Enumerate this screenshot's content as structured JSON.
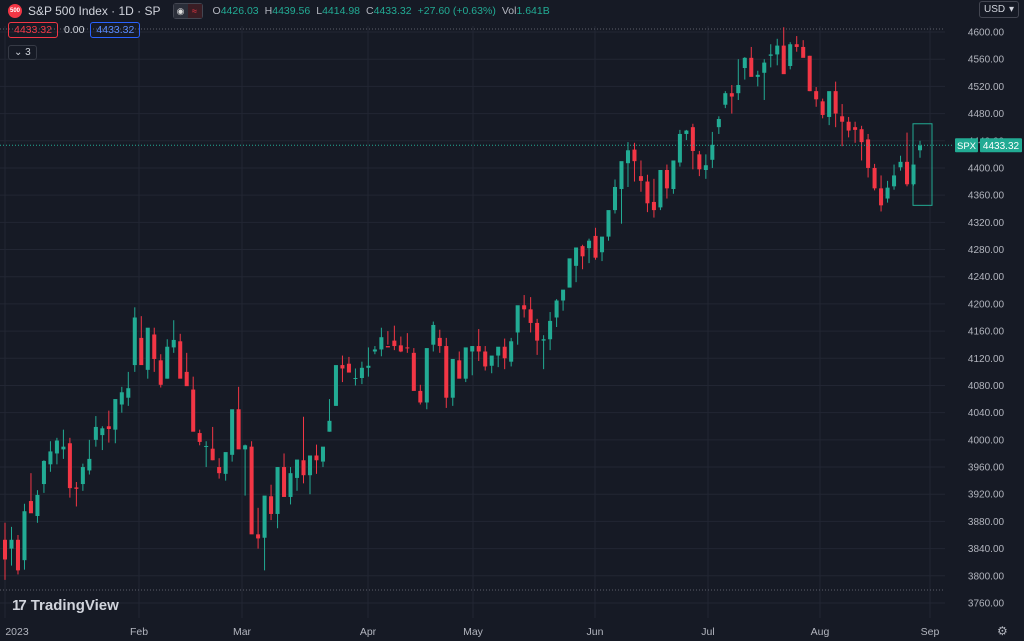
{
  "header": {
    "badge": "500",
    "title": "S&P 500 Index · 1D · SP",
    "ohlc": [
      {
        "k": "O",
        "v": "4426.03"
      },
      {
        "k": "H",
        "v": "4439.56"
      },
      {
        "k": "L",
        "v": "4414.98"
      },
      {
        "k": "C",
        "v": "4433.32"
      },
      {
        "k": "",
        "v": "+27.60 (+0.63%)"
      },
      {
        "k": "Vol",
        "v": "1.641B"
      }
    ],
    "sell": "4433.32",
    "spread": "0.00",
    "buy": "4433.32",
    "indicators_count": "3",
    "currency": "USD"
  },
  "brand": "TradingView",
  "colors": {
    "up": "#22ab94",
    "down": "#f23645",
    "bg": "#161a25",
    "grid": "#222633",
    "text": "#d1d4dc"
  },
  "chart_data": {
    "type": "candlestick",
    "symbol": "SPX",
    "last_price": 4433.32,
    "ylim": [
      3750,
      4610
    ],
    "y_ticks": [
      3760,
      3800,
      3840,
      3880,
      3920,
      3960,
      4000,
      4040,
      4080,
      4120,
      4160,
      4200,
      4240,
      4280,
      4320,
      4360,
      4400,
      4440,
      4480,
      4520,
      4560,
      4600
    ],
    "x_ticks": [
      {
        "date": "2023-01-03",
        "label": "2023"
      },
      {
        "date": "2023-02-01",
        "label": "Feb"
      },
      {
        "date": "2023-03-01",
        "label": "Mar"
      },
      {
        "date": "2023-04-03",
        "label": "Apr"
      },
      {
        "date": "2023-05-01",
        "label": "May"
      },
      {
        "date": "2023-06-01",
        "label": "Jun"
      },
      {
        "date": "2023-07-03",
        "label": "Jul"
      },
      {
        "date": "2023-08-01",
        "label": "Aug"
      },
      {
        "date": "2023-09-01",
        "label": "Sep"
      }
    ],
    "candles_ohlc": [
      [
        3853,
        3878,
        3794,
        3824
      ],
      [
        3840,
        3872,
        3815,
        3853
      ],
      [
        3853,
        3860,
        3802,
        3808
      ],
      [
        3823,
        3906,
        3809,
        3895
      ],
      [
        3910,
        3951,
        3903,
        3892
      ],
      [
        3888,
        3926,
        3878,
        3919
      ],
      [
        3935,
        3970,
        3922,
        3969
      ],
      [
        3964,
        3998,
        3953,
        3983
      ],
      [
        3980,
        4003,
        3964,
        3999
      ],
      [
        3986,
        4015,
        3972,
        3990
      ],
      [
        3995,
        4003,
        3915,
        3929
      ],
      [
        3930,
        3938,
        3902,
        3928
      ],
      [
        3935,
        3965,
        3925,
        3960
      ],
      [
        3955,
        4000,
        3949,
        3972
      ],
      [
        4000,
        4035,
        3990,
        4019
      ],
      [
        4007,
        4020,
        3985,
        4017
      ],
      [
        4020,
        4043,
        3996,
        4016
      ],
      [
        4015,
        4030,
        3995,
        4060
      ],
      [
        4052,
        4078,
        4040,
        4070
      ],
      [
        4062,
        4100,
        4050,
        4076
      ],
      [
        4110,
        4195,
        4100,
        4180
      ],
      [
        4150,
        4182,
        4132,
        4110
      ],
      [
        4103,
        4125,
        4090,
        4165
      ],
      [
        4155,
        4165,
        4100,
        4119
      ],
      [
        4117,
        4126,
        4077,
        4081
      ],
      [
        4090,
        4148,
        4090,
        4137
      ],
      [
        4136,
        4176,
        4128,
        4147
      ],
      [
        4145,
        4156,
        4120,
        4090
      ],
      [
        4100,
        4128,
        4085,
        4079
      ],
      [
        4074,
        4093,
        4059,
        4012
      ],
      [
        4010,
        4015,
        3992,
        3997
      ],
      [
        3990,
        3998,
        3960,
        3991
      ],
      [
        3987,
        4019,
        3970,
        3970
      ],
      [
        3960,
        3973,
        3943,
        3951
      ],
      [
        3950,
        3959,
        3940,
        3982
      ],
      [
        3978,
        4027,
        3968,
        4045
      ],
      [
        4045,
        4078,
        4033,
        3986
      ],
      [
        3986,
        3993,
        3918,
        3992
      ],
      [
        3990,
        3998,
        3952,
        3861
      ],
      [
        3861,
        3900,
        3840,
        3855
      ],
      [
        3856,
        3875,
        3808,
        3918
      ],
      [
        3917,
        3934,
        3882,
        3891
      ],
      [
        3891,
        3960,
        3870,
        3960
      ],
      [
        3960,
        3980,
        3924,
        3916
      ],
      [
        3916,
        3960,
        3905,
        3951
      ],
      [
        3944,
        3970,
        3925,
        3971
      ],
      [
        3970,
        4034,
        3936,
        3948
      ],
      [
        3948,
        3955,
        3920,
        3977
      ],
      [
        3977,
        3993,
        3950,
        3970
      ],
      [
        3968,
        3968,
        3960,
        3990
      ],
      [
        4012,
        4060,
        4012,
        4028
      ],
      [
        4050,
        4075,
        4050,
        4110
      ],
      [
        4110,
        4124,
        4085,
        4105
      ],
      [
        4112,
        4122,
        4100,
        4099
      ],
      [
        4090,
        4105,
        4080,
        4091
      ],
      [
        4091,
        4115,
        4082,
        4106
      ],
      [
        4106,
        4136,
        4093,
        4109
      ],
      [
        4130,
        4138,
        4126,
        4133
      ],
      [
        4133,
        4165,
        4123,
        4151
      ],
      [
        4138,
        4160,
        4140,
        4136
      ],
      [
        4146,
        4168,
        4132,
        4138
      ],
      [
        4139,
        4152,
        4129,
        4130
      ],
      [
        4136,
        4157,
        4128,
        4135
      ],
      [
        4128,
        4135,
        4095,
        4072
      ],
      [
        4072,
        4081,
        4052,
        4055
      ],
      [
        4055,
        4090,
        4045,
        4135
      ],
      [
        4140,
        4174,
        4130,
        4169
      ],
      [
        4150,
        4162,
        4128,
        4138
      ],
      [
        4138,
        4150,
        4047,
        4062
      ],
      [
        4062,
        4098,
        4050,
        4119
      ],
      [
        4117,
        4130,
        4096,
        4090
      ],
      [
        4090,
        4110,
        4085,
        4136
      ],
      [
        4130,
        4138,
        4095,
        4138
      ],
      [
        4138,
        4163,
        4116,
        4130
      ],
      [
        4130,
        4138,
        4102,
        4108
      ],
      [
        4109,
        4115,
        4098,
        4124
      ],
      [
        4124,
        4133,
        4107,
        4137
      ],
      [
        4137,
        4149,
        4104,
        4120
      ],
      [
        4115,
        4150,
        4108,
        4145
      ],
      [
        4158,
        4172,
        4140,
        4198
      ],
      [
        4198,
        4213,
        4180,
        4192
      ],
      [
        4192,
        4210,
        4158,
        4172
      ],
      [
        4172,
        4178,
        4125,
        4146
      ],
      [
        4146,
        4154,
        4104,
        4148
      ],
      [
        4148,
        4188,
        4132,
        4175
      ],
      [
        4180,
        4207,
        4166,
        4205
      ],
      [
        4205,
        4218,
        4190,
        4221
      ],
      [
        4224,
        4231,
        4234,
        4267
      ],
      [
        4256,
        4278,
        4232,
        4283
      ],
      [
        4285,
        4287,
        4251,
        4270
      ],
      [
        4282,
        4296,
        4260,
        4293
      ],
      [
        4300,
        4312,
        4265,
        4268
      ],
      [
        4276,
        4295,
        4263,
        4299
      ],
      [
        4299,
        4326,
        4293,
        4338
      ],
      [
        4338,
        4383,
        4333,
        4372
      ],
      [
        4369,
        4403,
        4318,
        4410
      ],
      [
        4407,
        4438,
        4372,
        4426
      ],
      [
        4427,
        4437,
        4380,
        4410
      ],
      [
        4388,
        4411,
        4365,
        4381
      ],
      [
        4380,
        4390,
        4335,
        4348
      ],
      [
        4350,
        4384,
        4327,
        4338
      ],
      [
        4342,
        4378,
        4338,
        4397
      ],
      [
        4397,
        4405,
        4355,
        4370
      ],
      [
        4369,
        4405,
        4362,
        4411
      ],
      [
        4408,
        4456,
        4402,
        4450
      ],
      [
        4450,
        4456,
        4441,
        4455
      ],
      [
        4460,
        4465,
        4398,
        4425
      ],
      [
        4420,
        4425,
        4388,
        4398
      ],
      [
        4397,
        4420,
        4384,
        4404
      ],
      [
        4412,
        4453,
        4400,
        4434
      ],
      [
        4460,
        4476,
        4450,
        4472
      ],
      [
        4493,
        4513,
        4488,
        4510
      ],
      [
        4510,
        4522,
        4480,
        4505
      ],
      [
        4510,
        4560,
        4500,
        4522
      ],
      [
        4547,
        4563,
        4530,
        4562
      ],
      [
        4562,
        4578,
        4537,
        4534
      ],
      [
        4534,
        4543,
        4520,
        4537
      ],
      [
        4540,
        4560,
        4500,
        4555
      ],
      [
        4565,
        4582,
        4548,
        4567
      ],
      [
        4567,
        4590,
        4551,
        4580
      ],
      [
        4580,
        4607,
        4567,
        4538
      ],
      [
        4550,
        4585,
        4545,
        4582
      ],
      [
        4582,
        4594,
        4571,
        4578
      ],
      [
        4578,
        4588,
        4570,
        4562
      ],
      [
        4565,
        4565,
        4513,
        4513
      ],
      [
        4513,
        4519,
        4490,
        4501
      ],
      [
        4498,
        4502,
        4473,
        4478
      ],
      [
        4475,
        4490,
        4463,
        4513
      ],
      [
        4513,
        4527,
        4460,
        4480
      ],
      [
        4476,
        4494,
        4432,
        4468
      ],
      [
        4468,
        4475,
        4445,
        4455
      ],
      [
        4460,
        4468,
        4437,
        4456
      ],
      [
        4457,
        4462,
        4411,
        4438
      ],
      [
        4442,
        4450,
        4386,
        4400
      ],
      [
        4400,
        4406,
        4367,
        4370
      ],
      [
        4370,
        4389,
        4336,
        4345
      ],
      [
        4355,
        4381,
        4349,
        4371
      ],
      [
        4373,
        4405,
        4368,
        4389
      ],
      [
        4401,
        4418,
        4396,
        4409
      ],
      [
        4409,
        4452,
        4373,
        4376
      ],
      [
        4376,
        4402,
        4374,
        4405
      ],
      [
        4426,
        4440,
        4415,
        4433
      ]
    ]
  }
}
